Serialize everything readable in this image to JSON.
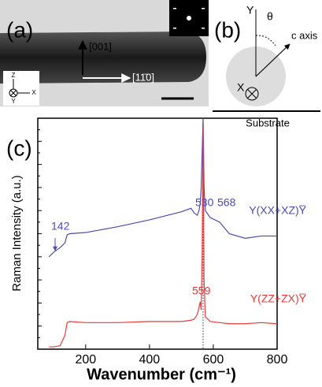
{
  "panels": {
    "a": {
      "label": "(a)",
      "direction_up": "[001]",
      "direction_right": "[11̄0]",
      "axis_z": "Z",
      "axis_x": "X",
      "axis_y": "Y"
    },
    "b": {
      "label": "(b)",
      "axis_y": "Y",
      "angle": "θ",
      "c_axis": "c axis",
      "axis_x": "X",
      "substrate": "Substrate"
    }
  },
  "chart_data": {
    "type": "line",
    "panel_label": "(c)",
    "x_label": "Wavenumber (cm⁻¹)",
    "y_label": "Raman Intensity (a.u.)",
    "x": [
      85,
      100,
      120,
      135,
      142,
      150,
      200,
      300,
      400,
      500,
      530,
      540,
      550,
      555,
      559,
      562,
      565,
      568,
      571,
      575,
      590,
      620,
      650,
      700,
      750,
      800
    ],
    "series": [
      {
        "name": "Y(XX+XZ)Y̅",
        "color": "#4b4bb4",
        "values": [
          4.0,
          4.2,
          4.4,
          4.6,
          4.95,
          5.0,
          5.05,
          5.3,
          5.6,
          5.95,
          6.1,
          5.9,
          5.8,
          6.0,
          6.3,
          7.0,
          8.5,
          10.0,
          7.0,
          6.0,
          5.7,
          5.5,
          5.0,
          4.8,
          4.9,
          4.9
        ]
      },
      {
        "name": "Y(ZZ+ZX)Y̅",
        "color": "#e83a3a",
        "values": [
          0.1,
          0.1,
          0.15,
          0.6,
          1.15,
          1.2,
          1.15,
          1.15,
          1.2,
          1.2,
          1.25,
          1.3,
          1.5,
          1.8,
          2.05,
          1.7,
          4.0,
          9.6,
          3.0,
          1.4,
          1.2,
          1.15,
          1.1,
          1.1,
          1.15,
          1.1
        ]
      }
    ],
    "annotations": [
      {
        "text": "142",
        "color": "#4b4bb4"
      },
      {
        "text": "530",
        "color": "#4b4bb4"
      },
      {
        "text": "568",
        "color": "#4b4bb4"
      },
      {
        "text": "559",
        "color": "#e83a3a"
      }
    ],
    "xlim": [
      50,
      800
    ],
    "ylim": [
      0,
      10
    ],
    "xticks": [
      200,
      400,
      600,
      800
    ],
    "yticks": [
      0,
      1,
      2,
      3,
      4,
      5,
      6,
      7,
      8,
      9,
      10
    ],
    "reference_line_x": 568
  }
}
